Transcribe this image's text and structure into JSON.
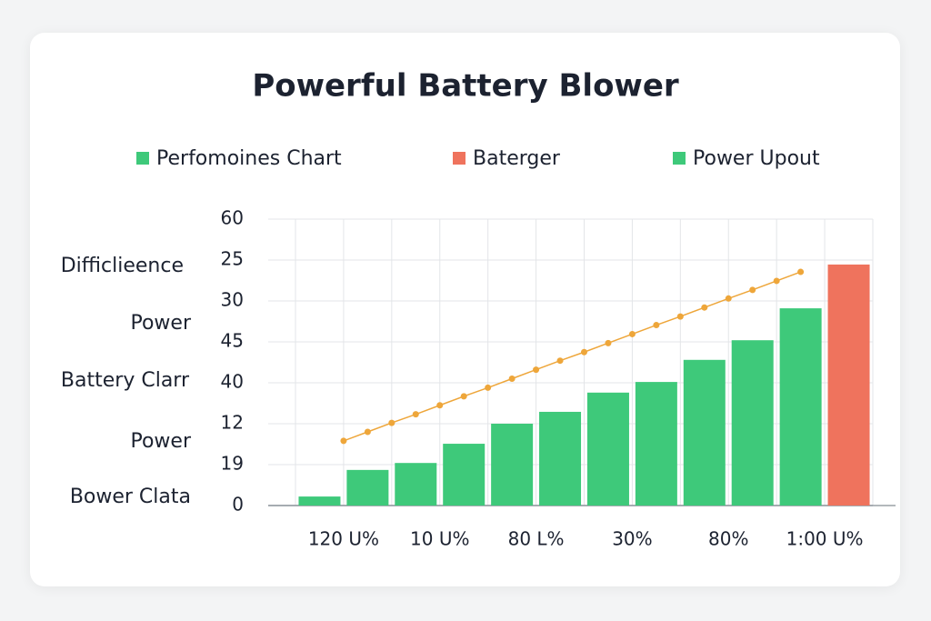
{
  "chart_data": {
    "type": "bar",
    "title": "Powerful Battery Blower",
    "categories": [
      "120 U%",
      "10 U%",
      "80 L%",
      "30%",
      "80%",
      "1:00 U%"
    ],
    "series": [
      {
        "name": "Perfomoines Chart",
        "color": "#3ec97a",
        "values": [
          0.22,
          1.04,
          2.0,
          2.76,
          3.56,
          4.82
        ]
      },
      {
        "name": "Baterger",
        "color": "#ef735d",
        "values": [
          null,
          null,
          null,
          null,
          null,
          5.89
        ]
      },
      {
        "name": "Power Upout",
        "color": "#3ec97a",
        "values": [
          0.87,
          1.51,
          2.29,
          3.02,
          4.04,
          null
        ]
      }
    ],
    "line": {
      "color": "#eea63a",
      "values": [
        1.58,
        1.8,
        2.02,
        2.23,
        2.45,
        2.67,
        2.88,
        3.1,
        3.32,
        3.54,
        3.75,
        3.97,
        4.19,
        4.41,
        4.62,
        4.84,
        5.06,
        5.27,
        5.49,
        5.71
      ]
    },
    "annotations": [
      "Difficlieence",
      "Power",
      "Battery Clarr",
      "Power",
      "Bower Clata"
    ],
    "ylim": [
      0,
      7
    ],
    "yticks": [
      {
        "value": 0,
        "label": "0"
      },
      {
        "value": 1,
        "label": "19"
      },
      {
        "value": 2,
        "label": "12"
      },
      {
        "value": 3,
        "label": "40"
      },
      {
        "value": 4,
        "label": "45"
      },
      {
        "value": 5,
        "label": "30"
      },
      {
        "value": 6,
        "label": "25"
      },
      {
        "value": 7,
        "label": "60"
      }
    ],
    "grid": true
  }
}
